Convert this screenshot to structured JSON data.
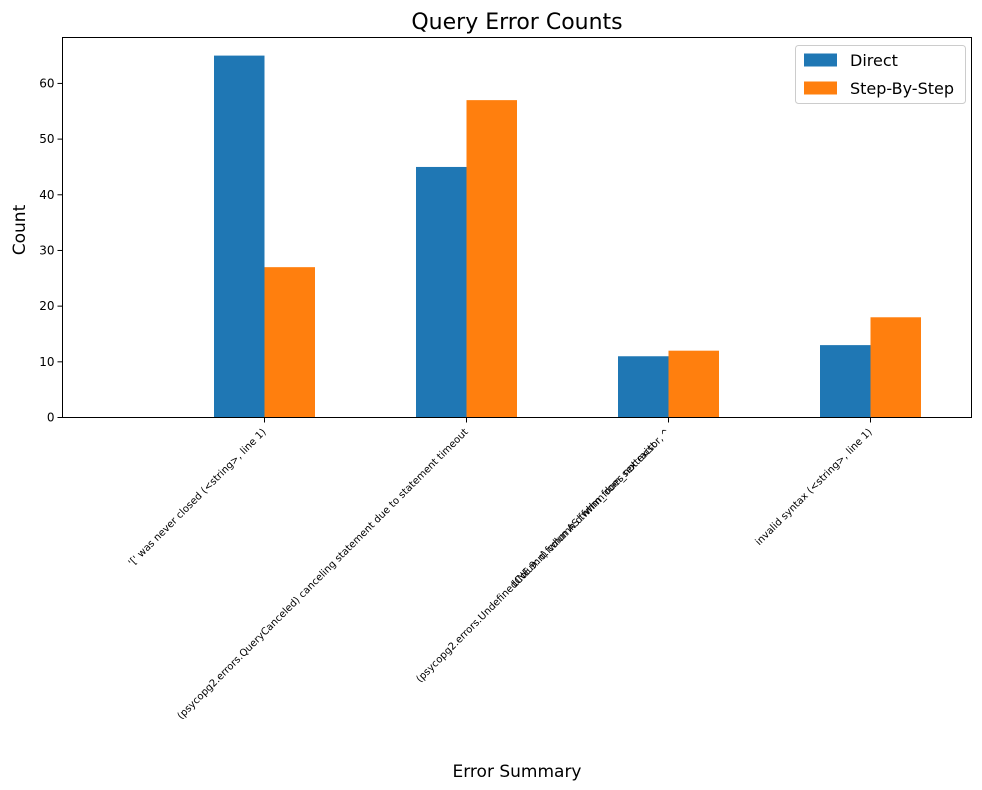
{
  "chart_data": {
    "type": "bar",
    "title": "Query Error Counts",
    "xlabel": "Error Summary",
    "ylabel": "Count",
    "ylim": [
      0,
      68.25
    ],
    "yticks": [
      0,
      10,
      20,
      30,
      40,
      50,
      60
    ],
    "grid": false,
    "legend_position": "top-right",
    "categories": [
      [
        "'[' was never closed (<string>, line 1)"
      ],
      [
        "(psycopg2.errors.QueryCanceled) canceling statement due to statement timeout"
      ],
      [
        "(psycopg2.errors.UndefinedColumn) column d.fwhm does not exist",
        "LINE 9:     d.fwhm AS fwhm_from_sextractor,",
        "              ^"
      ],
      [
        "invalid syntax (<string>, line 1)"
      ]
    ],
    "series": [
      {
        "name": "Direct",
        "color": "#1f77b4",
        "values": [
          65,
          45,
          11,
          13
        ]
      },
      {
        "name": "Step-By-Step",
        "color": "#ff7f0e",
        "values": [
          27,
          57,
          12,
          18
        ]
      }
    ]
  }
}
